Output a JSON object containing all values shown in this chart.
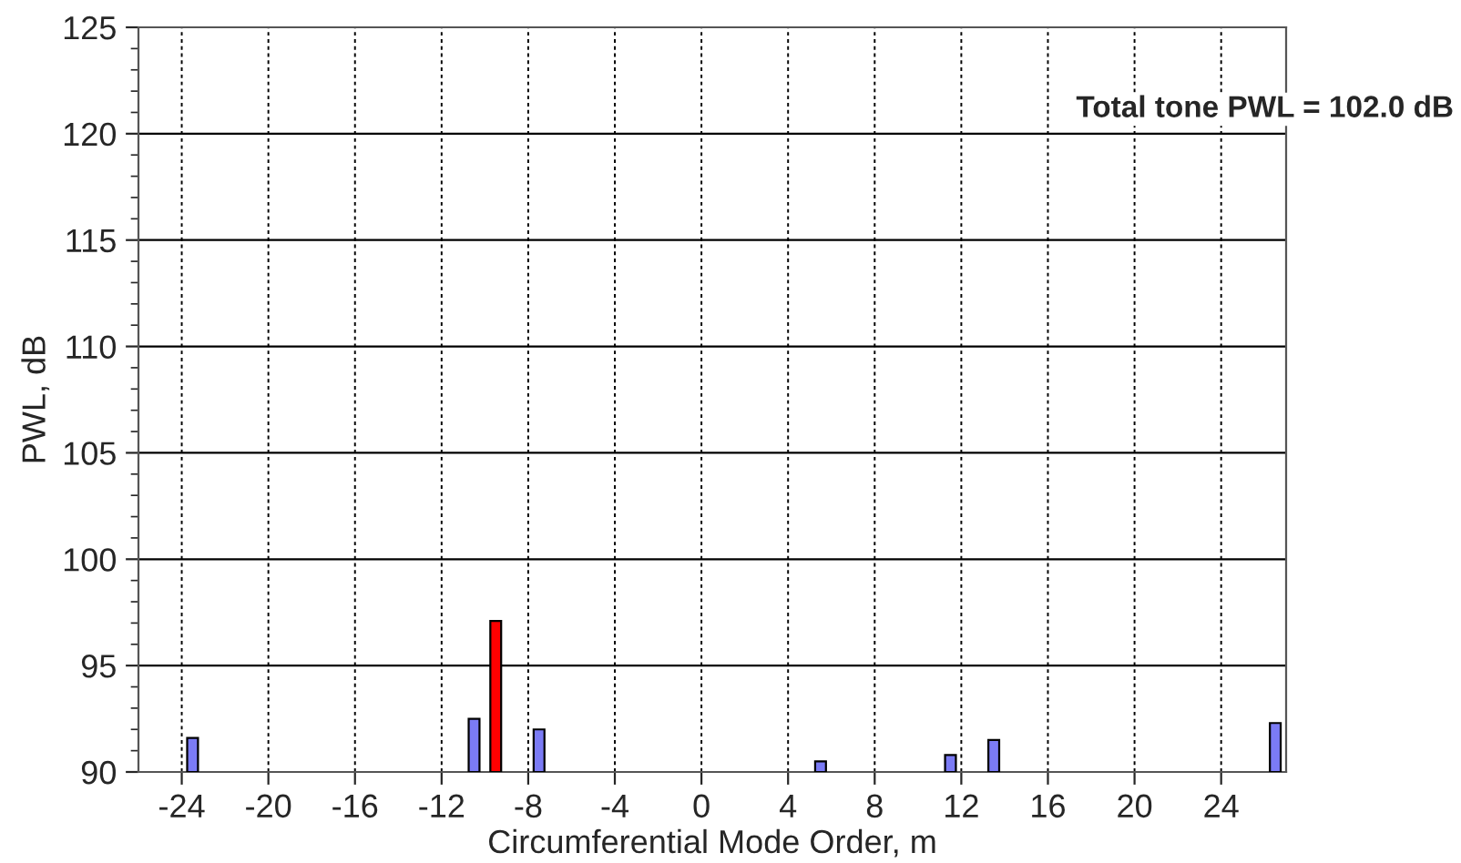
{
  "chart_data": {
    "type": "bar",
    "xlabel": "Circumferential Mode Order, m",
    "ylabel": "PWL, dB",
    "annotations": [
      "Total tone PWL = 102.0 dB"
    ],
    "x": [
      -23.5,
      -10.5,
      -9.5,
      -7.5,
      5.5,
      11.5,
      13.5,
      26.5
    ],
    "values": [
      91.6,
      92.5,
      97.1,
      92.0,
      90.5,
      90.8,
      91.5,
      92.3
    ],
    "colors": [
      "#7b7bf5",
      "#7b7bf5",
      "#ff0000",
      "#7b7bf5",
      "#7b7bf5",
      "#7b7bf5",
      "#7b7bf5",
      "#7b7bf5"
    ],
    "xlim": [
      -26,
      27
    ],
    "xticks": [
      -24,
      -20,
      -16,
      -12,
      -8,
      -4,
      0,
      4,
      8,
      12,
      16,
      20,
      24
    ],
    "ylim": [
      90,
      125
    ],
    "yticks": [
      90,
      95,
      100,
      105,
      110,
      115,
      120,
      125
    ],
    "grid": true
  }
}
